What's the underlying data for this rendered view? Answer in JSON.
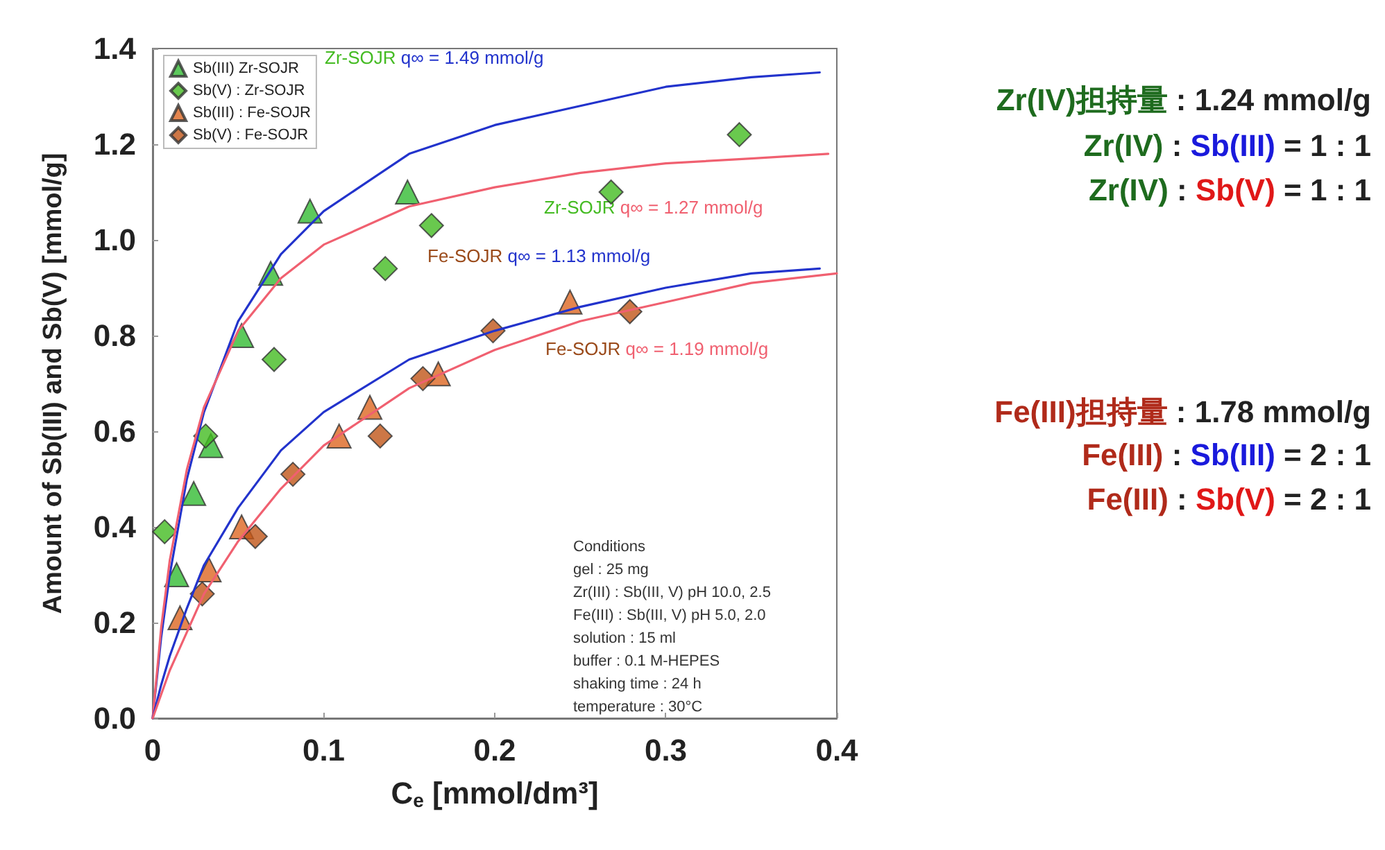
{
  "chart_data": {
    "type": "scatter",
    "xlabel": "C$_{e}$ [mmol/dm³]",
    "ylabel": "Amount of Sb(III) and Sb(V) [mmol/g]",
    "xlim": [
      0,
      0.4
    ],
    "xticks": [
      0,
      0.1,
      0.2,
      0.3,
      0.4
    ],
    "ylim": [
      0,
      1.4
    ],
    "yticks": [
      {
        "value": 0,
        "label": "0.0"
      },
      {
        "value": 0.2,
        "label": "0.2"
      },
      {
        "value": 0.4,
        "label": "0.4"
      },
      {
        "value": 0.6,
        "label": "0.6"
      },
      {
        "value": 0.8,
        "label": "0.8"
      },
      {
        "value": 1,
        "label": "1.0"
      },
      {
        "value": 1.2,
        "label": "1.2"
      },
      {
        "value": 1.4,
        "label": "1.4"
      }
    ],
    "grid": false,
    "legend": "top left",
    "series": [
      {
        "name": "Sb(III) Zr-SOJR",
        "marker": "triangle",
        "color": "#33bb33",
        "x": [
          0.014,
          0.024,
          0.034,
          0.052,
          0.069,
          0.092,
          0.149
        ],
        "values": [
          0.3,
          0.47,
          0.57,
          0.8,
          0.93,
          1.06,
          1.1
        ]
      },
      {
        "name": "Sb(V) : Zr-SOJR",
        "marker": "diamond",
        "color": "#44bb22",
        "x": [
          0.007,
          0.031,
          0.071,
          0.136,
          0.163,
          0.268,
          0.343
        ],
        "values": [
          0.39,
          0.59,
          0.75,
          0.94,
          1.03,
          1.1,
          1.22
        ]
      },
      {
        "name": "Sb(III) : Fe-SOJR",
        "marker": "triangle",
        "color": "#dd6622",
        "x": [
          0.016,
          0.033,
          0.052,
          0.109,
          0.127,
          0.167,
          0.244
        ],
        "values": [
          0.21,
          0.31,
          0.4,
          0.59,
          0.65,
          0.72,
          0.87
        ]
      },
      {
        "name": "Sb(V) : Fe-SOJR",
        "marker": "diamond",
        "color": "#c05518",
        "x": [
          0.029,
          0.06,
          0.082,
          0.133,
          0.158,
          0.199,
          0.279
        ],
        "values": [
          0.26,
          0.38,
          0.51,
          0.59,
          0.71,
          0.81,
          0.85
        ]
      },
      {
        "type": "line",
        "marker": "none",
        "color": "#2233cc",
        "x": [
          0,
          0.005,
          0.01,
          0.02,
          0.03,
          0.05,
          0.075,
          0.1,
          0.15,
          0.2,
          0.25,
          0.3,
          0.35,
          0.39
        ],
        "values": [
          0,
          0.17,
          0.3,
          0.5,
          0.64,
          0.83,
          0.97,
          1.06,
          1.18,
          1.24,
          1.28,
          1.32,
          1.34,
          1.35
        ]
      },
      {
        "type": "line",
        "marker": "none",
        "color": "#f06070",
        "x": [
          0,
          0.005,
          0.01,
          0.02,
          0.03,
          0.05,
          0.075,
          0.1,
          0.15,
          0.2,
          0.25,
          0.3,
          0.35,
          0.395
        ],
        "values": [
          0,
          0.19,
          0.33,
          0.52,
          0.65,
          0.81,
          0.92,
          0.99,
          1.07,
          1.11,
          1.14,
          1.16,
          1.17,
          1.18
        ]
      },
      {
        "type": "line",
        "marker": "none",
        "color": "#2233cc",
        "x": [
          0,
          0.005,
          0.01,
          0.02,
          0.03,
          0.05,
          0.075,
          0.1,
          0.15,
          0.2,
          0.25,
          0.3,
          0.35,
          0.39
        ],
        "values": [
          0,
          0.07,
          0.13,
          0.23,
          0.32,
          0.44,
          0.56,
          0.64,
          0.75,
          0.81,
          0.86,
          0.9,
          0.93,
          0.94
        ]
      },
      {
        "type": "line",
        "marker": "none",
        "color": "#f06070",
        "x": [
          0,
          0.005,
          0.01,
          0.02,
          0.03,
          0.05,
          0.075,
          0.1,
          0.15,
          0.2,
          0.25,
          0.3,
          0.35,
          0.4
        ],
        "values": [
          0,
          0.05,
          0.1,
          0.18,
          0.26,
          0.37,
          0.48,
          0.57,
          0.69,
          0.77,
          0.83,
          0.87,
          0.91,
          0.93
        ]
      }
    ],
    "annotations": [
      "Zr-SOJR q∞ = 1.49 mmol/g",
      "Zr-SOJR q∞ = 1.27 mmol/g",
      "Fe-SOJR q∞ = 1.13 mmol/g",
      "Fe-SOJR q∞ = 1.19 mmol/g",
      "Zr(IV)担持量 : 1.24 mmol/g",
      "Zr(IV) : Sb(III) = 1 : 1",
      "Zr(IV) : Sb(V) = 1 : 1",
      "Fe(III)担持量 : 1.78 mmol/g",
      "Fe(III) : Sb(III) = 2 : 1",
      "Fe(III) : Sb(V) = 2 : 1",
      "Conditions\ngel : 25 mg\nZr(III) : Sb(III, V) pH 10.0, 2.5\nFe(III) : Sb(III, V) pH 5.0, 2.0\nsolution : 15 ml\nbuffer : 0.1 M-HEPES\nshaking time : 24 h\ntemperature : 30°C"
    ]
  }
}
